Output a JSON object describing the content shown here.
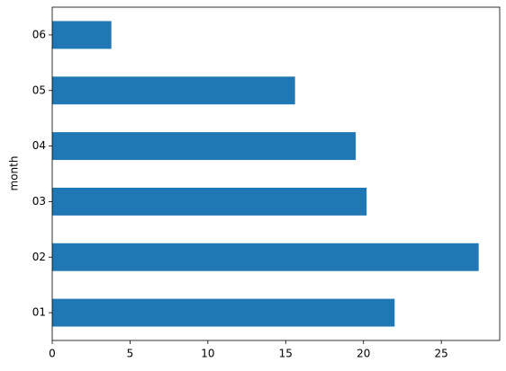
{
  "chart_data": {
    "type": "barh",
    "ylabel": "month",
    "categories": [
      "01",
      "02",
      "03",
      "04",
      "05",
      "06"
    ],
    "values": [
      22.0,
      27.4,
      20.2,
      19.5,
      15.6,
      3.8
    ],
    "color": "#1f77b4",
    "xlim": [
      0,
      28.75
    ],
    "xticks": [
      0,
      5,
      10,
      15,
      20,
      25
    ],
    "grid": false
  }
}
